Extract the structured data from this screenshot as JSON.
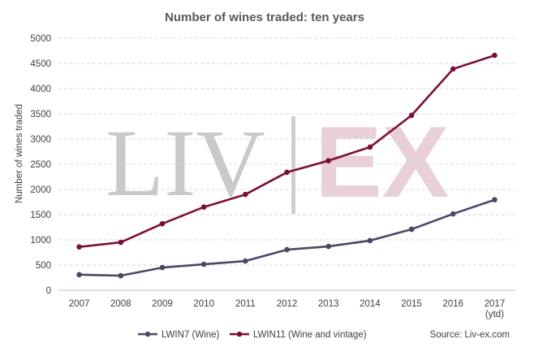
{
  "chart_data": {
    "type": "line",
    "title": "Number of wines traded: ten years",
    "ylabel": "Number of wines traded",
    "xlabel": "",
    "ylim": [
      0,
      5000
    ],
    "yticks": [
      0,
      500,
      1000,
      1500,
      2000,
      2500,
      3000,
      3500,
      4000,
      4500,
      5000
    ],
    "categories": [
      "2007",
      "2008",
      "2009",
      "2010",
      "2011",
      "2012",
      "2013",
      "2014",
      "2015",
      "2016",
      "2017\n(ytd)"
    ],
    "series": [
      {
        "name": "LWIN7 (Wine)",
        "color": "#4b4863",
        "values": [
          310,
          290,
          450,
          515,
          580,
          805,
          870,
          985,
          1210,
          1515,
          1795
        ]
      },
      {
        "name": "LWIN11 (Wine and vintage)",
        "color": "#7b0f3b",
        "values": [
          860,
          950,
          1320,
          1650,
          1900,
          2340,
          2570,
          2840,
          3470,
          4390,
          4660
        ]
      }
    ],
    "legend_position": "bottom",
    "grid": "horizontal-dashed",
    "source": "Source: Liv-ex.com",
    "watermark": {
      "left": "LIV",
      "separator": "|",
      "right": "EX",
      "left_color": "#c9c9c9",
      "right_color": "#e9cfd6"
    }
  }
}
